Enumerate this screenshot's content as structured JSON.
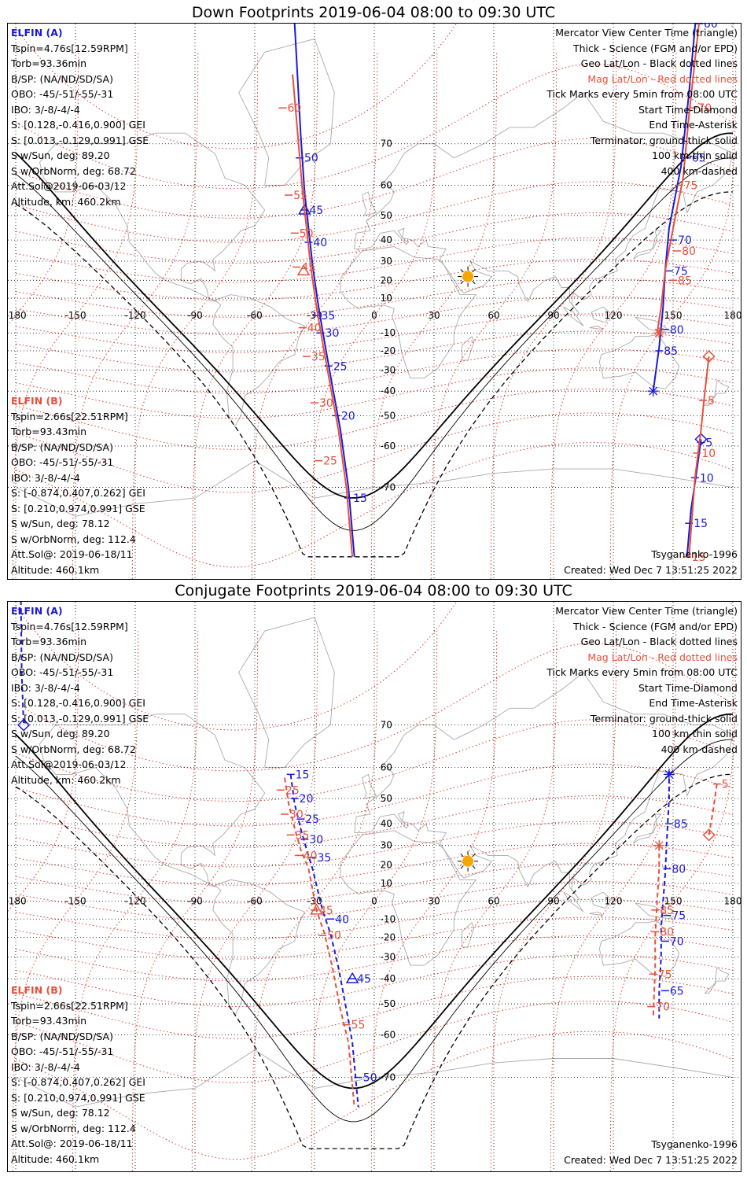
{
  "colors": {
    "elfin_a": "#1a1ad8",
    "elfin_b": "#e8503a",
    "coast": "#aaaaaa",
    "geo_grid": "#000000",
    "mag_grid": "#e33b2b",
    "sun": "#f5a800"
  },
  "lon_ticks": [
    "-180",
    "-150",
    "-120",
    "-90",
    "-60",
    "-30",
    "0",
    "30",
    "60",
    "90",
    "120",
    "150",
    "180"
  ],
  "lat_ticks": [
    "70",
    "60",
    "50",
    "40",
    "30",
    "20",
    "10",
    "0",
    "-10",
    "-20",
    "-30",
    "-40",
    "-50",
    "-60",
    "-70"
  ],
  "legend_right": [
    {
      "text": "Mercator View Center Time (triangle)",
      "cls": "blk"
    },
    {
      "text": "Thick - Science (FGM and/or EPD)",
      "cls": "blk"
    },
    {
      "text": "Geo Lat/Lon - Black dotted lines",
      "cls": "blk"
    },
    {
      "text": "Mag Lat/Lon - Red dotted lines",
      "cls": "red"
    },
    {
      "text": "Tick Marks every 5min from 08:00 UTC",
      "cls": "blk"
    },
    {
      "text": "Start Time-Diamond",
      "cls": "blk"
    },
    {
      "text": "End Time-Asterisk",
      "cls": "blk"
    },
    {
      "text": "Terminator: ground-thick solid",
      "cls": "blk"
    },
    {
      "text": "100 km-thin solid",
      "cls": "blk"
    },
    {
      "text": "400 km-dashed",
      "cls": "blk"
    }
  ],
  "elfin_a": {
    "name": "ELFIN (A)",
    "lines": [
      "Tspin=4.76s[12.59RPM]",
      "Torb=93.36min",
      "B/SP: (NA/ND/SD/SA)",
      "OBO: -45/-51/-55/-31",
      "IBO: 3/-8/-4/-4",
      "S: [0.128,-0.416,0.900] GEI",
      "S: [0.013,-0.129,0.991] GSE",
      "S w/Sun, deg: 89.20",
      "S w/OrbNorm, deg: 68.72",
      "Att.Sol@2019-06-03/12",
      "Altitude, km: 460.2km"
    ]
  },
  "elfin_b": {
    "name": "ELFIN (B)",
    "lines": [
      "Tspin=2.66s[22.51RPM]",
      "Torb=93.43min",
      "B/SP: (NA/ND/SD/SA)",
      "OBO: -45/-51/-55/-31",
      "IBO: 3/-8/-4/-4",
      "S: [-0.874,0.407,0.262] GEI",
      "S: [0.210,0.974,0.991] GSE",
      "S w/Sun, deg: 78.12",
      "S w/OrbNorm, deg: 112.4",
      "Att.Sol@: 2019-06-18/11",
      "Altitude: 460.1km"
    ]
  },
  "model": "Tsyganenko-1996",
  "created": "Created: Wed Dec  7 13:51:25 2022",
  "panels": [
    {
      "title": "Down Footprints 2019-06-04 08:00 to 09:30 UTC",
      "tracks": [
        {
          "color": "b",
          "style": "solid",
          "pts": [
            [
              -40,
              84
            ],
            [
              -37,
              72
            ],
            [
              -35,
              58
            ],
            [
              -33,
              45
            ],
            [
              -31,
              28
            ],
            [
              -28,
              5
            ],
            [
              -25,
              -15
            ],
            [
              -21,
              -38
            ],
            [
              -17,
              -55
            ],
            [
              -13,
              -70
            ],
            [
              -10,
              -80
            ]
          ],
          "ticks": [
            [
              "50",
              -37.5,
              67
            ],
            [
              "45",
              -35,
              52
            ],
            [
              "40",
              -33,
              39
            ],
            [
              "35",
              -29,
              0
            ],
            [
              "30",
              -27,
              -10
            ],
            [
              "25",
              -23,
              -28
            ],
            [
              "20",
              -19,
              -50
            ],
            [
              "15",
              -13,
              -72
            ]
          ],
          "triangle": [
            -35,
            52
          ]
        },
        {
          "color": "r",
          "style": "solid",
          "pts": [
            [
              -41,
              80
            ],
            [
              -38,
              70
            ],
            [
              -36,
              58
            ],
            [
              -34,
              45
            ],
            [
              -32,
              28
            ],
            [
              -29,
              5
            ],
            [
              -26,
              -15
            ],
            [
              -22,
              -38
            ],
            [
              -18,
              -55
            ],
            [
              -14,
              -70
            ],
            [
              -11,
              -80
            ]
          ],
          "ticks": [
            [
              "60",
              -46,
              76
            ],
            [
              "55",
              -43,
              57
            ],
            [
              "50",
              -40,
              43
            ],
            [
              "45",
              -39,
              27
            ],
            [
              "40",
              -36,
              -7
            ],
            [
              "35",
              -34,
              -23
            ],
            [
              "30",
              -30,
              -45
            ],
            [
              "25",
              -28,
              -64
            ]
          ],
          "triangle": [
            -35.5,
            25
          ]
        },
        {
          "color": "b",
          "style": "solid",
          "pts": [
            [
              163,
              86
            ],
            [
              158,
              78
            ],
            [
              154,
              65
            ],
            [
              148,
              45
            ],
            [
              146,
              25
            ],
            [
              145,
              5
            ],
            [
              143,
              -18
            ],
            [
              140,
              -40
            ]
          ],
          "ticks": [
            [
              "60",
              163,
              84
            ],
            [
              "65",
              157,
              67
            ],
            [
              "70",
              150,
              40
            ],
            [
              "75",
              148,
              25
            ],
            [
              "80",
              146,
              -8
            ],
            [
              "85",
              143,
              -20
            ]
          ],
          "triangle": null,
          "asterisk": [
            140,
            -40
          ]
        },
        {
          "color": "b",
          "style": "solid",
          "pts": [
            [
              164,
              -58
            ],
            [
              162,
              -66
            ],
            [
              159,
              -74
            ],
            [
              157,
              -80
            ]
          ],
          "ticks": [
            [
              "5",
              164,
              -59
            ],
            [
              "10",
              161,
              -68
            ],
            [
              "15",
              158,
              -76
            ]
          ],
          "diamond": [
            164,
            -58
          ]
        },
        {
          "color": "r",
          "style": "solid",
          "pts": [
            [
              163,
              84
            ],
            [
              158,
              75
            ],
            [
              155,
              62
            ],
            [
              150,
              45
            ],
            [
              146,
              25
            ],
            [
              144,
              5
            ],
            [
              142,
              -10
            ]
          ],
          "ticks": [
            [
              "70",
              160,
              76
            ],
            [
              "75",
              153,
              60
            ],
            [
              "80",
              152,
              35
            ],
            [
              "85",
              150,
              20
            ]
          ],
          "asterisk": [
            143,
            -10
          ]
        },
        {
          "color": "r",
          "style": "solid",
          "pts": [
            [
              168,
              -23
            ],
            [
              166,
              -40
            ],
            [
              164,
              -55
            ],
            [
              161,
              -68
            ],
            [
              158,
              -80
            ]
          ],
          "ticks": [
            [
              "5",
              165,
              -44
            ],
            [
              "10",
              162,
              -62
            ],
            [
              "15",
              157,
              -80
            ]
          ],
          "diamond": [
            168,
            -23
          ]
        }
      ]
    },
    {
      "title": "Conjugate Footprints 2019-06-04 08:00 to 09:30 UTC",
      "tracks": [
        {
          "color": "b",
          "style": "dash",
          "pts": [
            [
              -42,
              58
            ],
            [
              -40,
              48
            ],
            [
              -37,
              38
            ],
            [
              -34,
              28
            ],
            [
              -31,
              18
            ],
            [
              -26,
              -5
            ],
            [
              -22,
              -18
            ],
            [
              -18,
              -35
            ],
            [
              -14,
              -52
            ],
            [
              -11,
              -62
            ],
            [
              -8,
              -75
            ]
          ],
          "ticks": [
            [
              "15",
              -42,
              58
            ],
            [
              "20",
              -40,
              50
            ],
            [
              "25",
              -37,
              42
            ],
            [
              "30",
              -35,
              33
            ],
            [
              "35",
              -31,
              24
            ],
            [
              "40",
              -22,
              -10
            ],
            [
              "45",
              -11,
              -40
            ],
            [
              "50",
              -8,
              -70
            ]
          ],
          "triangle": [
            -11,
            -40
          ]
        },
        {
          "color": "r",
          "style": "dash",
          "pts": [
            [
              -45,
              57
            ],
            [
              -43,
              48
            ],
            [
              -40,
              38
            ],
            [
              -37,
              28
            ],
            [
              -33,
              18
            ],
            [
              -29,
              -5
            ],
            [
              -25,
              -18
            ],
            [
              -21,
              -35
            ],
            [
              -17,
              -52
            ],
            [
              -13,
              -62
            ],
            [
              -10,
              -75
            ]
          ],
          "ticks": [
            [
              "25",
              -47,
              53
            ],
            [
              "30",
              -45,
              44
            ],
            [
              "35",
              -42,
              35
            ],
            [
              "40",
              -38,
              25
            ],
            [
              "45",
              -30,
              -5
            ],
            [
              "50",
              -26,
              -19
            ],
            [
              "55",
              -14,
              -57
            ]
          ],
          "triangle": [
            -29,
            -5
          ]
        },
        {
          "color": "b",
          "style": "dash",
          "pts": [
            [
              148,
              59
            ],
            [
              148,
              50
            ],
            [
              147,
              35
            ],
            [
              146,
              15
            ],
            [
              145,
              0
            ],
            [
              144,
              -15
            ],
            [
              144,
              -30
            ],
            [
              143,
              -45
            ],
            [
              143,
              -55
            ]
          ],
          "ticks": [
            [
              "85",
              148,
              40
            ],
            [
              "80",
              147,
              18
            ],
            [
              "75",
              147,
              -8
            ],
            [
              "70",
              146,
              -22
            ],
            [
              "65",
              146,
              -45
            ]
          ],
          "asterisk": [
            148,
            58
          ]
        },
        {
          "color": "r",
          "style": "dash",
          "pts": [
            [
              172,
              55
            ],
            [
              170,
              45
            ],
            [
              168,
              35
            ]
          ],
          "ticks": [
            [
              "5",
              172,
              55
            ]
          ],
          "diamond": [
            168,
            35
          ]
        },
        {
          "color": "r",
          "style": "dash",
          "pts": [
            [
              143,
              30
            ],
            [
              143,
              18
            ],
            [
              142,
              0
            ],
            [
              141,
              -20
            ],
            [
              141,
              -35
            ],
            [
              140,
              -55
            ]
          ],
          "ticks": [
            [
              "85",
              141,
              -5
            ],
            [
              "80",
              141,
              -17
            ],
            [
              "75",
              140,
              -38
            ],
            [
              "70",
              139,
              -51
            ]
          ],
          "asterisk": [
            143,
            30
          ]
        },
        {
          "color": "b",
          "style": "dash",
          "pts": [
            [
              -178,
              88
            ],
            [
              -177,
              78
            ],
            [
              -176,
              70
            ]
          ],
          "ticks": [],
          "diamond": [
            -176,
            70
          ]
        },
        {
          "color": "r",
          "style": "dash",
          "pts": [
            [
              -179,
              90
            ],
            [
              -178,
              84
            ]
          ],
          "ticks": [
            [
              "10",
              -180,
              86
            ]
          ]
        }
      ]
    }
  ],
  "map_labels": {
    "sun_lon": 47,
    "sun_lat": 22
  }
}
